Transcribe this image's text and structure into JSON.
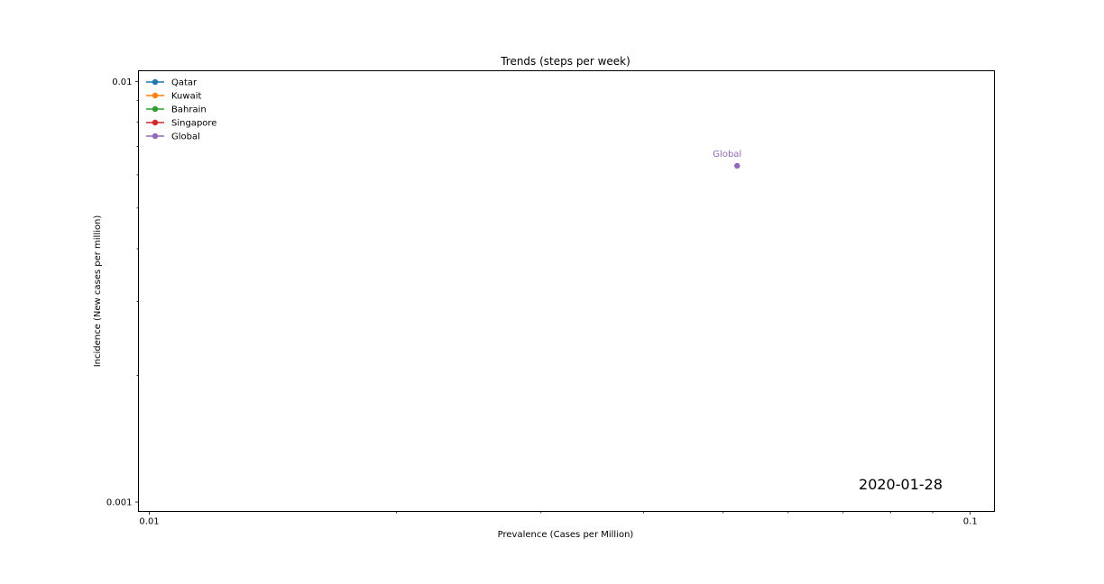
{
  "chart_data": {
    "type": "scatter",
    "title": "Trends (steps per week)",
    "xlabel": "Prevalence (Cases per Million)",
    "ylabel": "Incidence (New cases per million)",
    "x_scale": "log",
    "y_scale": "log",
    "xlim": [
      0.0097,
      0.107
    ],
    "ylim": [
      0.00095,
      0.0106
    ],
    "x_ticks": [
      {
        "value": 0.01,
        "label": "0.01"
      },
      {
        "value": 0.1,
        "label": "0.1"
      }
    ],
    "y_ticks": [
      {
        "value": 0.001,
        "label": "0.001"
      },
      {
        "value": 0.01,
        "label": "0.01"
      }
    ],
    "grid": false,
    "legend_position": "top-left",
    "series": [
      {
        "name": "Qatar",
        "color": "#1f77b4",
        "points": []
      },
      {
        "name": "Kuwait",
        "color": "#ff7f0e",
        "points": []
      },
      {
        "name": "Bahrain",
        "color": "#2ca02c",
        "points": []
      },
      {
        "name": "Singapore",
        "color": "#d62728",
        "points": []
      },
      {
        "name": "Global",
        "color": "#9467bd",
        "points": [
          {
            "x": 0.052,
            "y": 0.0063
          }
        ]
      }
    ],
    "annotations": [
      {
        "text": "Global",
        "x": 0.052,
        "y": 0.0063,
        "color": "#9467bd"
      }
    ],
    "date_label": "2020-01-28"
  }
}
